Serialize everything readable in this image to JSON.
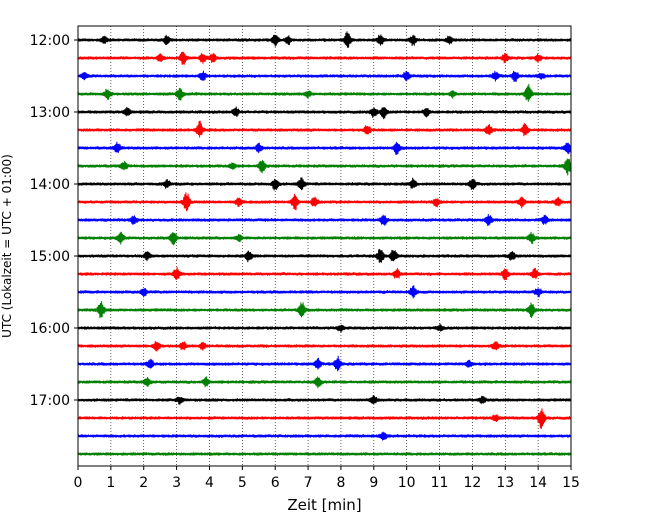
{
  "chart_data": {
    "type": "line",
    "title": "",
    "xlabel": "Zeit  [min]",
    "ylabel": "UTC (Lokalzeit = UTC + 01:00)",
    "xlim": [
      0,
      15
    ],
    "x_ticks": [
      "0",
      "1",
      "2",
      "3",
      "4",
      "5",
      "6",
      "7",
      "8",
      "9",
      "10",
      "11",
      "12",
      "13",
      "14",
      "15"
    ],
    "y_ticks": [
      "12:00",
      "13:00",
      "14:00",
      "15:00",
      "16:00",
      "17:00"
    ],
    "grid": {
      "vertical": true,
      "style": "dotted"
    },
    "trace_interval_min": 15,
    "colors": [
      "#000000",
      "#ff0000",
      "#0000ff",
      "#008000"
    ],
    "series": [
      {
        "start": "12:00",
        "color": "#000000",
        "events": [
          [
            0.8,
            3
          ],
          [
            2.7,
            4
          ],
          [
            6.0,
            6
          ],
          [
            6.4,
            4
          ],
          [
            8.2,
            8
          ],
          [
            9.2,
            5
          ],
          [
            10.2,
            5
          ],
          [
            11.3,
            4
          ]
        ]
      },
      {
        "start": "12:15",
        "color": "#ff0000",
        "events": [
          [
            2.5,
            3
          ],
          [
            3.2,
            6
          ],
          [
            3.8,
            5
          ],
          [
            4.1,
            4
          ],
          [
            13.0,
            4
          ],
          [
            14.0,
            3
          ]
        ]
      },
      {
        "start": "12:30",
        "color": "#0000ff",
        "events": [
          [
            0.2,
            3
          ],
          [
            3.8,
            4
          ],
          [
            10.0,
            5
          ],
          [
            12.7,
            4
          ],
          [
            13.3,
            5
          ],
          [
            14.1,
            3
          ]
        ]
      },
      {
        "start": "12:45",
        "color": "#008000",
        "events": [
          [
            0.9,
            5
          ],
          [
            3.1,
            6
          ],
          [
            7.0,
            3
          ],
          [
            11.4,
            3
          ],
          [
            13.7,
            9
          ]
        ]
      },
      {
        "start": "13:00",
        "color": "#000000",
        "events": [
          [
            1.5,
            4
          ],
          [
            4.8,
            4
          ],
          [
            9.0,
            5
          ],
          [
            9.3,
            6
          ],
          [
            10.6,
            4
          ]
        ]
      },
      {
        "start": "13:15",
        "color": "#ff0000",
        "events": [
          [
            3.7,
            8
          ],
          [
            8.8,
            5
          ],
          [
            12.5,
            5
          ],
          [
            13.6,
            6
          ]
        ]
      },
      {
        "start": "13:30",
        "color": "#0000ff",
        "events": [
          [
            1.2,
            5
          ],
          [
            5.5,
            4
          ],
          [
            9.7,
            6
          ],
          [
            14.9,
            6
          ]
        ]
      },
      {
        "start": "13:45",
        "color": "#008000",
        "events": [
          [
            1.4,
            4
          ],
          [
            4.7,
            3
          ],
          [
            5.6,
            6
          ],
          [
            14.9,
            8
          ]
        ]
      },
      {
        "start": "14:00",
        "color": "#000000",
        "events": [
          [
            2.7,
            4
          ],
          [
            6.0,
            6
          ],
          [
            6.8,
            6
          ],
          [
            10.2,
            5
          ],
          [
            12.0,
            6
          ]
        ]
      },
      {
        "start": "14:15",
        "color": "#ff0000",
        "events": [
          [
            3.3,
            9
          ],
          [
            4.9,
            4
          ],
          [
            6.6,
            8
          ],
          [
            7.2,
            5
          ],
          [
            10.9,
            4
          ],
          [
            13.5,
            5
          ],
          [
            14.6,
            4
          ]
        ]
      },
      {
        "start": "14:30",
        "color": "#0000ff",
        "events": [
          [
            1.7,
            4
          ],
          [
            9.3,
            5
          ],
          [
            12.5,
            5
          ],
          [
            14.2,
            4
          ]
        ]
      },
      {
        "start": "14:45",
        "color": "#008000",
        "events": [
          [
            1.3,
            5
          ],
          [
            2.9,
            6
          ],
          [
            4.9,
            3
          ],
          [
            13.8,
            5
          ]
        ]
      },
      {
        "start": "15:00",
        "color": "#000000",
        "events": [
          [
            2.1,
            4
          ],
          [
            5.2,
            5
          ],
          [
            9.2,
            7
          ],
          [
            9.6,
            6
          ],
          [
            13.2,
            4
          ]
        ]
      },
      {
        "start": "15:15",
        "color": "#ff0000",
        "events": [
          [
            3.0,
            6
          ],
          [
            9.7,
            5
          ],
          [
            13.0,
            6
          ],
          [
            13.9,
            5
          ]
        ]
      },
      {
        "start": "15:30",
        "color": "#0000ff",
        "events": [
          [
            2.0,
            4
          ],
          [
            10.2,
            6
          ],
          [
            14.0,
            4
          ]
        ]
      },
      {
        "start": "15:45",
        "color": "#008000",
        "events": [
          [
            0.7,
            8
          ],
          [
            6.8,
            8
          ],
          [
            13.8,
            7
          ]
        ]
      },
      {
        "start": "16:00",
        "color": "#000000",
        "events": [
          [
            8.0,
            3
          ],
          [
            11.0,
            3
          ]
        ]
      },
      {
        "start": "16:15",
        "color": "#ff0000",
        "events": [
          [
            2.4,
            5
          ],
          [
            3.2,
            4
          ],
          [
            3.8,
            3
          ],
          [
            12.7,
            4
          ]
        ]
      },
      {
        "start": "16:30",
        "color": "#0000ff",
        "events": [
          [
            2.2,
            4
          ],
          [
            7.3,
            5
          ],
          [
            7.9,
            7
          ],
          [
            11.9,
            3
          ]
        ]
      },
      {
        "start": "16:45",
        "color": "#008000",
        "events": [
          [
            2.1,
            4
          ],
          [
            3.9,
            4
          ],
          [
            7.3,
            5
          ]
        ]
      },
      {
        "start": "17:00",
        "color": "#000000",
        "events": [
          [
            3.1,
            3
          ],
          [
            9.0,
            4
          ],
          [
            12.3,
            3
          ]
        ]
      },
      {
        "start": "17:15",
        "color": "#ff0000",
        "events": [
          [
            12.7,
            3
          ],
          [
            14.1,
            10
          ]
        ]
      },
      {
        "start": "17:30",
        "color": "#0000ff",
        "events": [
          [
            9.3,
            4
          ]
        ]
      },
      {
        "start": "17:45",
        "color": "#008000",
        "events": []
      }
    ]
  }
}
